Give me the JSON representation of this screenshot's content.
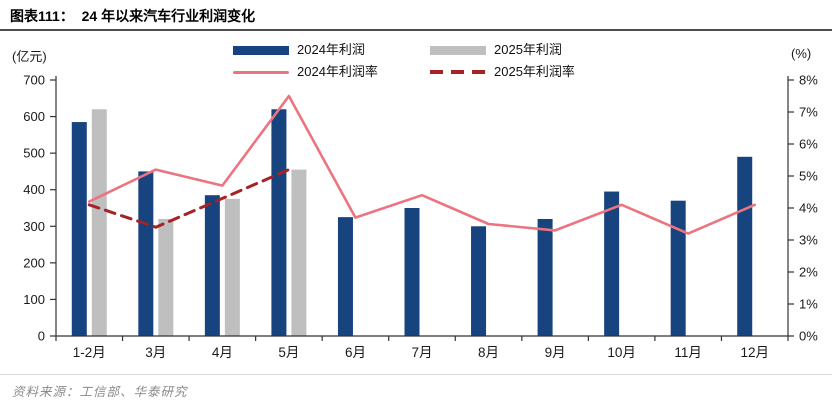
{
  "header": {
    "title_prefix": "图表111：",
    "title": "24 年以来汽车行业利润变化"
  },
  "chart_data": {
    "type": "bar+line combo",
    "categories": [
      "1-2月",
      "3月",
      "4月",
      "5月",
      "6月",
      "7月",
      "8月",
      "9月",
      "10月",
      "11月",
      "12月"
    ],
    "series": [
      {
        "name": "2024年利润",
        "type": "bar",
        "axis": "left",
        "color": "#17437E",
        "style": "solid",
        "values": [
          585,
          450,
          385,
          620,
          325,
          350,
          300,
          320,
          395,
          370,
          490
        ]
      },
      {
        "name": "2025年利润",
        "type": "bar",
        "axis": "left",
        "color": "#BFBFBF",
        "style": "solid",
        "values": [
          620,
          320,
          375,
          455,
          null,
          null,
          null,
          null,
          null,
          null,
          null
        ]
      },
      {
        "name": "2024年利润率",
        "type": "line",
        "axis": "right",
        "color": "#EC7480",
        "style": "solid",
        "values": [
          4.2,
          5.2,
          4.7,
          7.5,
          3.7,
          4.4,
          3.5,
          3.3,
          4.1,
          3.2,
          4.1
        ]
      },
      {
        "name": "2025年利润率",
        "type": "line",
        "axis": "right",
        "color": "#A52226",
        "style": "dashed",
        "values": [
          4.1,
          3.4,
          4.3,
          5.2,
          null,
          null,
          null,
          null,
          null,
          null,
          null
        ]
      }
    ],
    "left_axis": {
      "label": "(亿元)",
      "min": 0,
      "max": 700,
      "step": 100
    },
    "right_axis": {
      "label": "(%)",
      "min": 0,
      "max": 8,
      "step": 1,
      "suffix": "%"
    },
    "legend_position": "top",
    "grid": false
  },
  "footer": {
    "source": "资料来源：工信部、华泰研究"
  }
}
